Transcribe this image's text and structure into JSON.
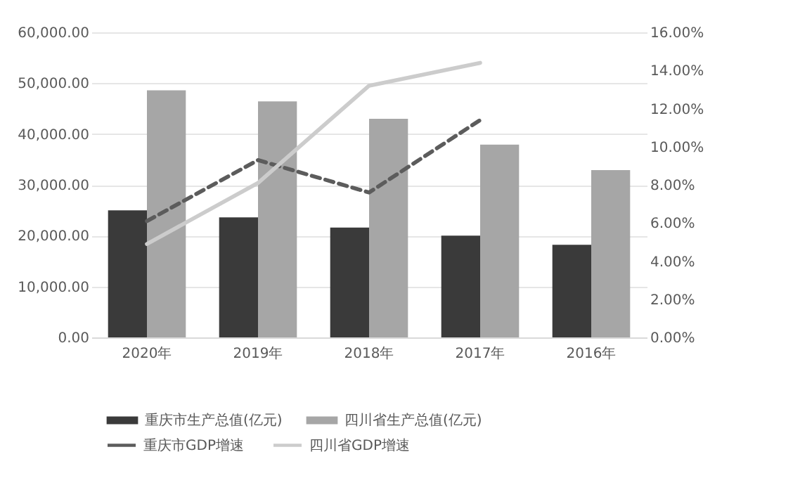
{
  "chart_data": {
    "type": "bar",
    "categories": [
      "2020年",
      "2019年",
      "2018年",
      "2017年",
      "2016年"
    ],
    "series": [
      {
        "name": "重庆市生产总值(亿元)",
        "color": "#3a3a3a",
        "values": [
          25000,
          23600,
          21600,
          20000,
          18200
        ]
      },
      {
        "name": "四川省生产总值(亿元)",
        "color": "#a6a6a6",
        "values": [
          48600,
          46400,
          43000,
          37900,
          32900
        ]
      },
      {
        "name": "重庆市GDP增速",
        "type": "line",
        "axis": "y2",
        "line_style": "dashed",
        "color": "#5c5c5c",
        "values": [
          6.1,
          9.3,
          7.6,
          11.4,
          null
        ]
      },
      {
        "name": "四川省GDP增速",
        "type": "line",
        "axis": "y2",
        "line_style": "solid",
        "color": "#cccccc",
        "values": [
          4.9,
          8.1,
          13.2,
          14.4,
          null
        ]
      }
    ],
    "ylim": [
      0,
      60000
    ],
    "yticks": [
      {
        "value": 0,
        "label": "0.00"
      },
      {
        "value": 10000,
        "label": "10,000.00"
      },
      {
        "value": 20000,
        "label": "20,000.00"
      },
      {
        "value": 30000,
        "label": "30,000.00"
      },
      {
        "value": 40000,
        "label": "40,000.00"
      },
      {
        "value": 50000,
        "label": "50,000.00"
      },
      {
        "value": 60000,
        "label": "60,000.00"
      }
    ],
    "y2lim": [
      0,
      16
    ],
    "y2ticks": [
      {
        "value": 0,
        "label": "0.00%"
      },
      {
        "value": 2,
        "label": "2.00%"
      },
      {
        "value": 4,
        "label": "4.00%"
      },
      {
        "value": 6,
        "label": "6.00%"
      },
      {
        "value": 8,
        "label": "8.00%"
      },
      {
        "value": 10,
        "label": "10.00%"
      },
      {
        "value": 12,
        "label": "12.00%"
      },
      {
        "value": 14,
        "label": "14.00%"
      },
      {
        "value": 16,
        "label": "16.00%"
      }
    ],
    "grid": "y",
    "legend": "bottom"
  }
}
